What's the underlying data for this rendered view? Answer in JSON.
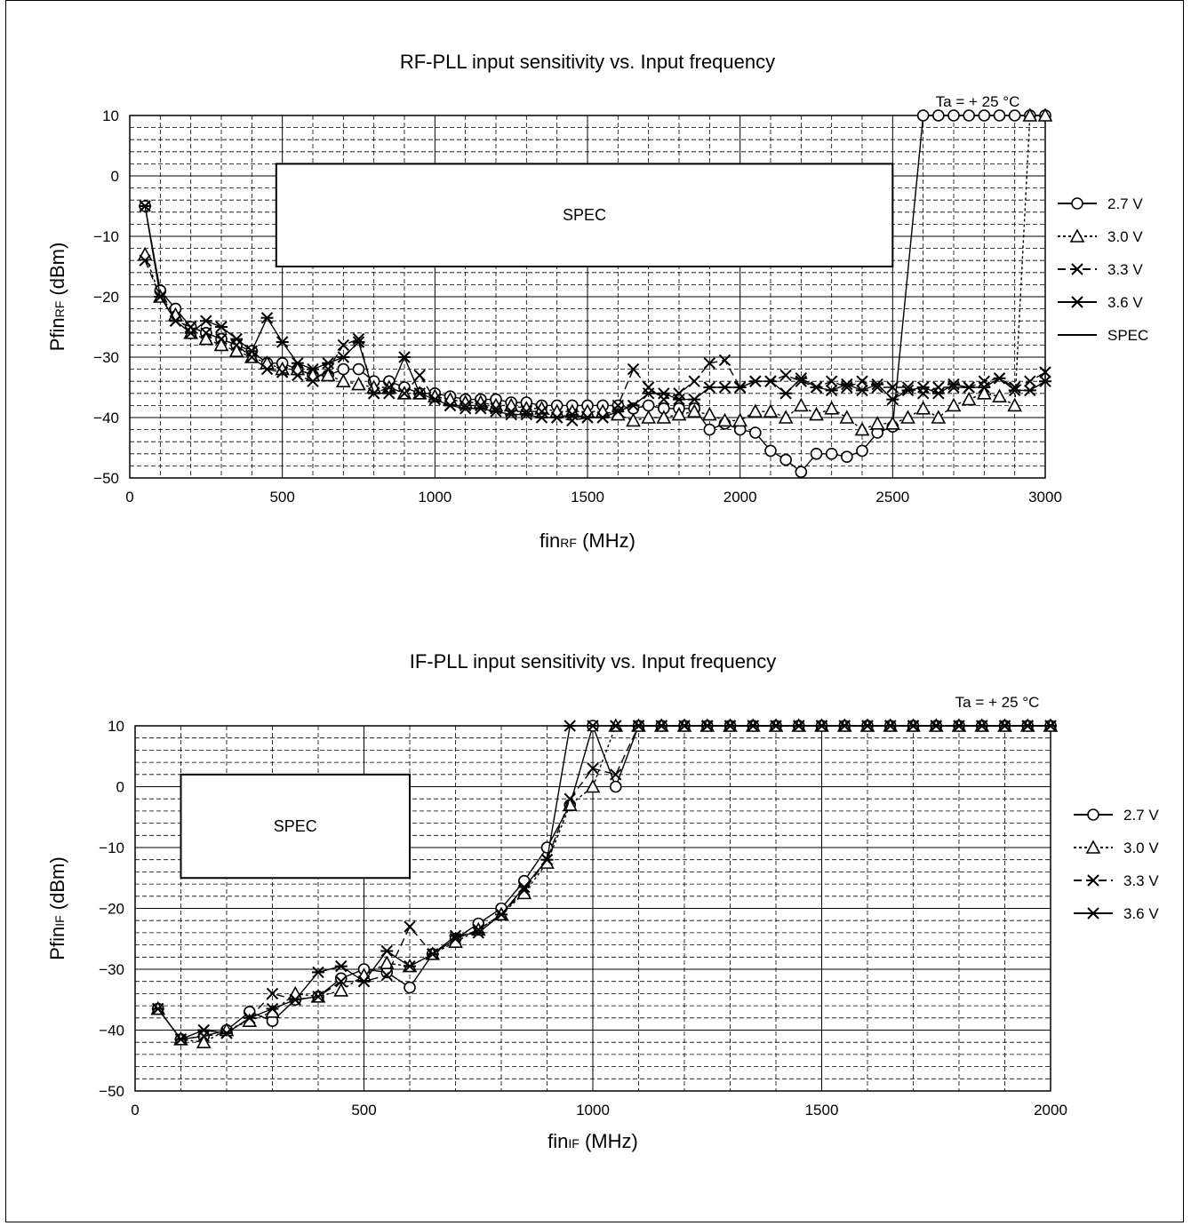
{
  "chart_data": [
    {
      "type": "line",
      "title": "RF-PLL input sensitivity vs. Input frequency",
      "ylabel_main": "Pfin",
      "ylabel_sub": "RF",
      "ylabel_unit": " (dBm)",
      "xlabel_main": "fin",
      "xlabel_sub": "RF",
      "xlabel_unit": " (MHz)",
      "annotation": "Ta = + 25 °C",
      "spec_label": "SPEC",
      "xlim": [
        0,
        3000
      ],
      "ylim": [
        -50,
        10
      ],
      "xticks": [
        0,
        500,
        1000,
        1500,
        2000,
        2500,
        3000
      ],
      "yticks": [
        10,
        0,
        -10,
        -20,
        -30,
        -40,
        -50
      ],
      "spec_box": {
        "x": [
          480,
          2500
        ],
        "y": [
          -15,
          2
        ]
      },
      "legend_position": "right",
      "grid": true,
      "series": [
        {
          "name": "2.7 V",
          "marker": "circle",
          "dash": "",
          "x": [
            50,
            100,
            150,
            200,
            250,
            300,
            350,
            400,
            450,
            500,
            550,
            600,
            650,
            700,
            750,
            800,
            850,
            900,
            950,
            1000,
            1050,
            1100,
            1150,
            1200,
            1250,
            1300,
            1350,
            1400,
            1450,
            1500,
            1550,
            1600,
            1650,
            1700,
            1750,
            1800,
            1850,
            1900,
            1950,
            2000,
            2050,
            2100,
            2150,
            2200,
            2250,
            2300,
            2350,
            2400,
            2450,
            2500,
            2600,
            2650,
            2700,
            2750,
            2800,
            2850,
            2900,
            2950,
            3000
          ],
          "y": [
            -5,
            -19,
            -22,
            -25,
            -26,
            -27,
            -28,
            -29,
            -31,
            -31,
            -32,
            -33,
            -33,
            -32,
            -32,
            -34,
            -34,
            -35,
            -36,
            -36,
            -36.5,
            -37,
            -37,
            -37,
            -37.5,
            -37.5,
            -38,
            -38,
            -38,
            -38,
            -38,
            -38,
            -38.5,
            -38,
            -38.5,
            -38.5,
            -38.5,
            -42,
            -41,
            -42,
            -42.5,
            -45.5,
            -47,
            -49,
            -46,
            -46,
            -46.5,
            -45.5,
            -42.5,
            -41.5,
            10,
            10,
            10,
            10,
            10,
            10,
            10,
            10,
            10
          ]
        },
        {
          "name": "3.0 V",
          "marker": "triangle",
          "dash": "3,3",
          "x": [
            50,
            100,
            150,
            200,
            250,
            300,
            350,
            400,
            450,
            500,
            550,
            600,
            650,
            700,
            750,
            800,
            850,
            900,
            950,
            1000,
            1050,
            1100,
            1150,
            1200,
            1250,
            1300,
            1350,
            1400,
            1450,
            1500,
            1550,
            1600,
            1650,
            1700,
            1750,
            1800,
            1850,
            1900,
            1950,
            2000,
            2050,
            2100,
            2150,
            2200,
            2250,
            2300,
            2350,
            2400,
            2450,
            2500,
            2550,
            2600,
            2650,
            2700,
            2750,
            2800,
            2850,
            2900,
            2950,
            3000
          ],
          "y": [
            -13,
            -20,
            -23,
            -26,
            -27,
            -28,
            -29,
            -30,
            -31,
            -32,
            -32,
            -33,
            -33,
            -34,
            -34.5,
            -35,
            -35,
            -36,
            -36,
            -36.5,
            -37,
            -37.5,
            -37.5,
            -38,
            -38,
            -38.5,
            -38.5,
            -39,
            -39,
            -39,
            -39,
            -39.5,
            -40.5,
            -40,
            -40,
            -39.5,
            -39,
            -39.5,
            -40.5,
            -40.5,
            -39,
            -39,
            -40,
            -38,
            -39.5,
            -38.5,
            -40,
            -42,
            -41,
            -41,
            -40,
            -38.5,
            -40,
            -38,
            -37,
            -36,
            -36.5,
            -38,
            10,
            10
          ]
        },
        {
          "name": "3.3 V",
          "marker": "x",
          "dash": "9,5",
          "x": [
            50,
            100,
            150,
            200,
            250,
            300,
            350,
            400,
            450,
            500,
            550,
            600,
            650,
            700,
            750,
            800,
            850,
            900,
            950,
            1000,
            1050,
            1100,
            1150,
            1200,
            1250,
            1300,
            1350,
            1400,
            1450,
            1500,
            1550,
            1600,
            1650,
            1700,
            1750,
            1800,
            1850,
            1900,
            1950,
            2000,
            2050,
            2100,
            2150,
            2200,
            2250,
            2300,
            2350,
            2400,
            2450,
            2500,
            2550,
            2600,
            2650,
            2700,
            2750,
            2800,
            2850,
            2900,
            2950,
            3000
          ],
          "y": [
            -14,
            -20,
            -24,
            -25,
            -26,
            -27,
            -28,
            -30,
            -32,
            -32.5,
            -33,
            -34,
            -32,
            -28,
            -27,
            -36,
            -35,
            -36,
            -33,
            -37,
            -38,
            -38,
            -38,
            -38.5,
            -39,
            -39,
            -39,
            -40,
            -40.5,
            -40,
            -40,
            -38,
            -32,
            -35,
            -37,
            -36,
            -34,
            -31,
            -30.5,
            -35,
            -34,
            -34,
            -33,
            -34,
            -35,
            -34,
            -35,
            -34,
            -35,
            -35,
            -35,
            -36,
            -35,
            -35,
            -35,
            -34,
            -33.5,
            -35,
            -34,
            -32.5
          ]
        },
        {
          "name": "3.6 V",
          "marker": "asterisk",
          "dash": "",
          "x": [
            50,
            100,
            150,
            200,
            250,
            300,
            350,
            400,
            450,
            500,
            550,
            600,
            650,
            700,
            750,
            800,
            850,
            900,
            950,
            1000,
            1050,
            1100,
            1150,
            1200,
            1250,
            1300,
            1350,
            1400,
            1450,
            1500,
            1550,
            1600,
            1650,
            1700,
            1750,
            1800,
            1850,
            1900,
            1950,
            2000,
            2050,
            2100,
            2150,
            2200,
            2250,
            2300,
            2350,
            2400,
            2450,
            2500,
            2550,
            2600,
            2650,
            2700,
            2750,
            2800,
            2850,
            2900,
            2950,
            3000
          ],
          "y": [
            -5,
            -20,
            -24,
            -26,
            -24,
            -25,
            -27,
            -29,
            -23.5,
            -27.5,
            -31,
            -32,
            -31,
            -30,
            -27.5,
            -36,
            -36,
            -30,
            -36,
            -37,
            -38,
            -38.5,
            -38.5,
            -39,
            -39.5,
            -39.5,
            -40,
            -40,
            -39.5,
            -40,
            -40,
            -39,
            -38,
            -36,
            -36,
            -37,
            -37,
            -35,
            -35,
            -35,
            -34,
            -34,
            -36,
            -33.5,
            -35,
            -35.5,
            -34.5,
            -35.5,
            -34.5,
            -37,
            -35.5,
            -35,
            -36,
            -34.5,
            -35,
            -35,
            -33.5,
            -35.5,
            -35.5,
            -34
          ]
        }
      ]
    },
    {
      "type": "line",
      "title": "IF-PLL input sensitivity vs. Input frequency",
      "ylabel_main": "Pfin",
      "ylabel_sub": "IF",
      "ylabel_unit": " (dBm)",
      "xlabel_main": "fin",
      "xlabel_sub": "IF",
      "xlabel_unit": " (MHz)",
      "annotation": "Ta = + 25 °C",
      "spec_label": "SPEC",
      "xlim": [
        0,
        2000
      ],
      "ylim": [
        -50,
        10
      ],
      "xticks": [
        0,
        500,
        1000,
        1500,
        2000
      ],
      "yticks": [
        10,
        0,
        -10,
        -20,
        -30,
        -40,
        -50
      ],
      "spec_box": {
        "x": [
          100,
          600
        ],
        "y": [
          -15,
          2
        ]
      },
      "legend_position": "right",
      "grid": true,
      "series": [
        {
          "name": "2.7 V",
          "marker": "circle",
          "dash": "",
          "x": [
            50,
            100,
            150,
            200,
            250,
            300,
            350,
            400,
            450,
            500,
            550,
            600,
            650,
            700,
            750,
            800,
            850,
            900,
            950,
            1000,
            1050,
            1100,
            1150,
            1200,
            1250,
            1300,
            1350,
            1400,
            1450,
            1500,
            1550,
            1600,
            1650,
            1700,
            1750,
            1800,
            1850,
            1900,
            1950,
            2000
          ],
          "y": [
            -36.5,
            -41.5,
            -41,
            -40,
            -37,
            -38.5,
            -35,
            -34.5,
            -31.5,
            -30,
            -30.5,
            -33,
            -27.5,
            -25,
            -22.5,
            -20,
            -15.5,
            -10,
            -3,
            10,
            0,
            10,
            10,
            10,
            10,
            10,
            10,
            10,
            10,
            10,
            10,
            10,
            10,
            10,
            10,
            10,
            10,
            10,
            10,
            10
          ]
        },
        {
          "name": "3.0 V",
          "marker": "triangle",
          "dash": "3,3",
          "x": [
            50,
            100,
            150,
            200,
            250,
            300,
            350,
            400,
            450,
            500,
            550,
            600,
            650,
            700,
            750,
            800,
            850,
            900,
            950,
            1000,
            1050,
            1100,
            1150,
            1200,
            1250,
            1300,
            1350,
            1400,
            1450,
            1500,
            1550,
            1600,
            1650,
            1700,
            1750,
            1800,
            1850,
            1900,
            1950,
            2000
          ],
          "y": [
            -36.5,
            -41.5,
            -42,
            -40,
            -38.5,
            -37,
            -34,
            -34.5,
            -33.5,
            -31,
            -29,
            -29.5,
            -27.5,
            -25.5,
            -23.5,
            -21,
            -17.5,
            -12.5,
            -3,
            0,
            10,
            10,
            10,
            10,
            10,
            10,
            10,
            10,
            10,
            10,
            10,
            10,
            10,
            10,
            10,
            10,
            10,
            10,
            10,
            10
          ]
        },
        {
          "name": "3.3 V",
          "marker": "x",
          "dash": "9,5",
          "x": [
            50,
            100,
            150,
            200,
            250,
            300,
            350,
            400,
            450,
            500,
            550,
            600,
            650,
            700,
            750,
            800,
            850,
            900,
            950,
            1000,
            1050,
            1100,
            1150,
            1200,
            1250,
            1300,
            1350,
            1400,
            1450,
            1500,
            1550,
            1600,
            1650,
            1700,
            1750,
            1800,
            1850,
            1900,
            1950,
            2000
          ],
          "y": [
            -36.5,
            -41.5,
            -41,
            -40.5,
            -38,
            -34,
            -35,
            -34.5,
            -32,
            -32,
            -31,
            -23,
            -27.5,
            -25,
            -23.5,
            -21,
            -17,
            -12,
            -2,
            3,
            2,
            10,
            10,
            10,
            10,
            10,
            10,
            10,
            10,
            10,
            10,
            10,
            10,
            10,
            10,
            10,
            10,
            10,
            10,
            10
          ]
        },
        {
          "name": "3.6 V",
          "marker": "asterisk",
          "dash": "",
          "x": [
            50,
            100,
            150,
            200,
            250,
            300,
            350,
            400,
            450,
            500,
            550,
            600,
            650,
            700,
            750,
            800,
            850,
            900,
            950,
            1000,
            1050,
            1100,
            1150,
            1200,
            1250,
            1300,
            1350,
            1400,
            1450,
            1500,
            1550,
            1600,
            1650,
            1700,
            1750,
            1800,
            1850,
            1900,
            1950,
            2000
          ],
          "y": [
            -36.5,
            -41.5,
            -40,
            -40.5,
            -38,
            -36.5,
            -35,
            -30.5,
            -29.5,
            -32,
            -27,
            -29.5,
            -27.5,
            -24.5,
            -24,
            -21,
            -16.5,
            -12,
            10,
            10,
            10,
            10,
            10,
            10,
            10,
            10,
            10,
            10,
            10,
            10,
            10,
            10,
            10,
            10,
            10,
            10,
            10,
            10,
            10,
            10
          ]
        },
        {
          "name": "SPEC",
          "marker": "none",
          "dash": "",
          "x": [],
          "y": []
        }
      ]
    }
  ],
  "legend_rf": [
    "2.7 V",
    "3.0 V",
    "3.3 V",
    "3.6 V",
    "SPEC"
  ],
  "legend_if": [
    "2.7 V",
    "3.0 V",
    "3.3 V",
    "3.6 V"
  ]
}
